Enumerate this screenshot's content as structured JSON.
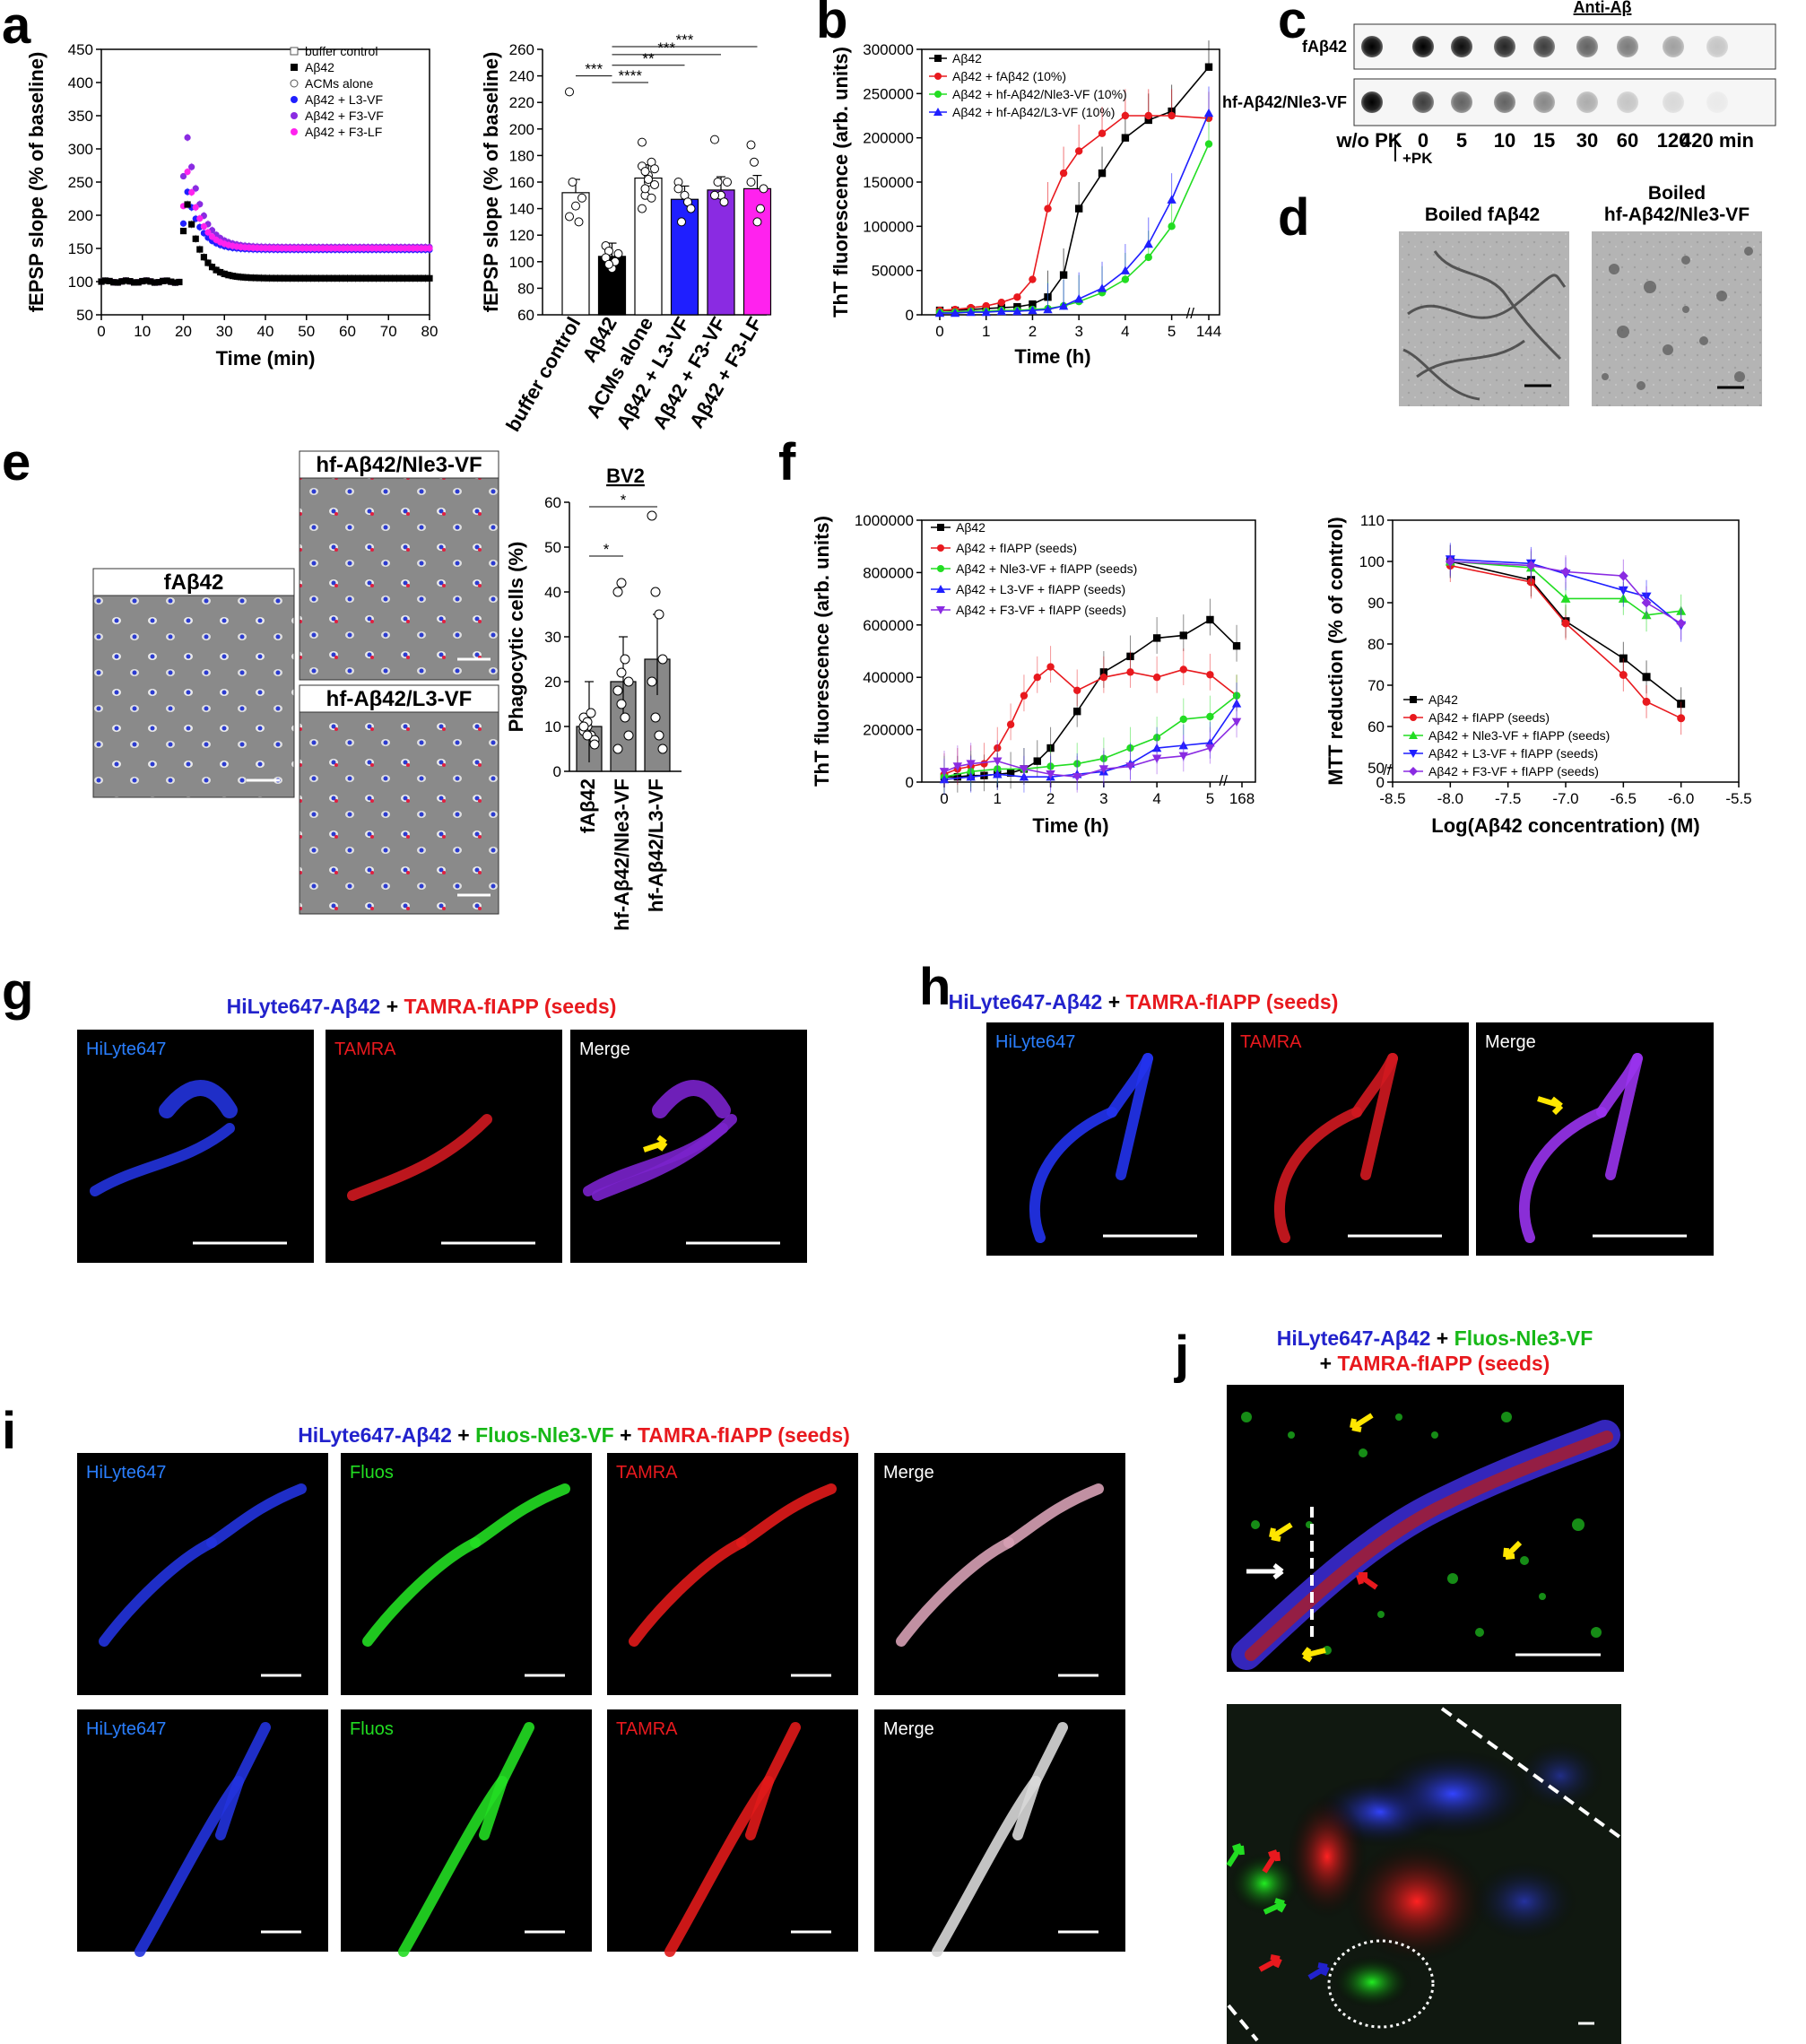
{
  "panels": {
    "a": "a",
    "b": "b",
    "c": "c",
    "d": "d",
    "e": "e",
    "f": "f",
    "g": "g",
    "h": "h",
    "i": "i",
    "j": "j"
  },
  "colors": {
    "black": "#000000",
    "red": "#e8191e",
    "green": "#22dd22",
    "blue": "#1f1fff",
    "violet": "#8a2be2",
    "magenta": "#ff22ee",
    "blue_title": "#2222cc",
    "green_title": "#17b817",
    "red_title": "#e8191e",
    "yellow_arrow": "#ffe600"
  },
  "chart_data": [
    {
      "id": "a-left",
      "type": "scatter",
      "xlabel": "Time (min)",
      "ylabel": "fEPSP slope (% of baseline)",
      "xlim": [
        0,
        80
      ],
      "ylim": [
        50,
        450
      ],
      "xticks": [
        "0",
        "10",
        "20",
        "30",
        "40",
        "50",
        "60",
        "70",
        "80"
      ],
      "yticks": [
        "50",
        "100",
        "150",
        "200",
        "250",
        "300",
        "350",
        "400",
        "450"
      ],
      "legend": [
        "buffer control",
        "Aβ42",
        "ACMs alone",
        "Aβ42 + L3-VF",
        "Aβ42 + F3-VF",
        "Aβ42 + F3-LF"
      ],
      "legend_position": "top-right",
      "series": [
        {
          "name": "buffer control",
          "marker": "open-square",
          "color": "#555555"
        },
        {
          "name": "Aβ42",
          "marker": "filled-square",
          "color": "#000000",
          "baseline": 100,
          "peak": [
            20.5,
            235
          ],
          "plateau": 105
        },
        {
          "name": "ACMs alone",
          "marker": "open-circle",
          "color": "#555555"
        },
        {
          "name": "Aβ42 + L3-VF",
          "marker": "filled-circle",
          "color": "#1f1fff",
          "baseline": 100,
          "peak": [
            20.5,
            250
          ],
          "plateau": 148
        },
        {
          "name": "Aβ42 + F3-VF",
          "marker": "filled-circle",
          "color": "#8a2be2",
          "baseline": 100,
          "peak": [
            20.5,
            345
          ],
          "plateau": 152
        },
        {
          "name": "Aβ42 + F3-LF",
          "marker": "filled-circle",
          "color": "#ff22ee",
          "baseline": 100,
          "peak": [
            20.5,
            285
          ],
          "plateau": 150
        }
      ]
    },
    {
      "id": "a-right",
      "type": "bar",
      "ylabel": "fEPSP slope (% of baseline)",
      "ylim": [
        60,
        260
      ],
      "yticks": [
        "60",
        "80",
        "100",
        "120",
        "140",
        "160",
        "180",
        "200",
        "220",
        "240",
        "260"
      ],
      "categories": [
        "buffer control",
        "Aβ42",
        "ACMs alone",
        "Aβ42 + L3-VF",
        "Aβ42 + F3-VF",
        "Aβ42 + F3-LF"
      ],
      "values": [
        152,
        104,
        163,
        147,
        154,
        155
      ],
      "colors": [
        "#ffffff",
        "#000000",
        "#ffffff",
        "#1f1fff",
        "#8a2be2",
        "#ff22ee"
      ],
      "significance": [
        "***",
        "****",
        "**",
        "***",
        "***"
      ]
    },
    {
      "id": "b",
      "type": "line",
      "xlabel": "Time (h)",
      "ylabel": "ThT fluorescence (arb. units)",
      "ylim": [
        0,
        300000
      ],
      "xticks": [
        "0",
        "1",
        "2",
        "3",
        "4",
        "5",
        "144"
      ],
      "yticks": [
        "0",
        "50000",
        "100000",
        "150000",
        "200000",
        "250000",
        "300000"
      ],
      "legend_position": "top-left",
      "series": [
        {
          "name": "Aβ42",
          "color": "#000000",
          "marker": "square",
          "points": [
            [
              0,
              5000
            ],
            [
              0.33,
              5000
            ],
            [
              0.67,
              6000
            ],
            [
              1,
              7000
            ],
            [
              1.33,
              8000
            ],
            [
              1.67,
              9000
            ],
            [
              2,
              12000
            ],
            [
              2.33,
              20000
            ],
            [
              2.67,
              45000
            ],
            [
              3,
              120000
            ],
            [
              3.5,
              160000
            ],
            [
              4,
              200000
            ],
            [
              4.5,
              220000
            ],
            [
              5,
              230000
            ],
            [
              5.8,
              280000
            ]
          ]
        },
        {
          "name": "Aβ42 + fAβ42 (10%)",
          "color": "#e8191e",
          "marker": "circle",
          "points": [
            [
              0,
              5000
            ],
            [
              0.33,
              6000
            ],
            [
              0.67,
              8000
            ],
            [
              1,
              10000
            ],
            [
              1.33,
              14000
            ],
            [
              1.67,
              20000
            ],
            [
              2,
              40000
            ],
            [
              2.33,
              120000
            ],
            [
              2.67,
              160000
            ],
            [
              3,
              185000
            ],
            [
              3.5,
              205000
            ],
            [
              4,
              225000
            ],
            [
              4.5,
              225000
            ],
            [
              5,
              225000
            ],
            [
              5.8,
              222000
            ]
          ]
        },
        {
          "name": "Aβ42 + hf-Aβ42/Nle3-VF (10%)",
          "color": "#22dd22",
          "marker": "circle",
          "points": [
            [
              0,
              3000
            ],
            [
              0.33,
              3000
            ],
            [
              0.67,
              4000
            ],
            [
              1,
              4000
            ],
            [
              1.33,
              5000
            ],
            [
              1.67,
              5000
            ],
            [
              2,
              6000
            ],
            [
              2.33,
              7000
            ],
            [
              2.67,
              10000
            ],
            [
              3,
              15000
            ],
            [
              3.5,
              25000
            ],
            [
              4,
              40000
            ],
            [
              4.5,
              65000
            ],
            [
              5,
              100000
            ],
            [
              5.8,
              193000
            ]
          ]
        },
        {
          "name": "Aβ42 + hf-Aβ42/L3-VF (10%)",
          "color": "#1f1fff",
          "marker": "triangle",
          "points": [
            [
              0,
              2000
            ],
            [
              0.33,
              2000
            ],
            [
              0.67,
              3000
            ],
            [
              1,
              3000
            ],
            [
              1.33,
              4000
            ],
            [
              1.67,
              4000
            ],
            [
              2,
              5000
            ],
            [
              2.33,
              6000
            ],
            [
              2.67,
              10000
            ],
            [
              3,
              18000
            ],
            [
              3.5,
              30000
            ],
            [
              4,
              50000
            ],
            [
              4.5,
              80000
            ],
            [
              5,
              130000
            ],
            [
              5.8,
              228000
            ]
          ]
        }
      ]
    },
    {
      "id": "e",
      "type": "bar",
      "title": "BV2",
      "ylabel": "Phagocytic cells (%)",
      "ylim": [
        0,
        60
      ],
      "yticks": [
        "0",
        "10",
        "20",
        "30",
        "40",
        "50",
        "60"
      ],
      "categories": [
        "fAβ42",
        "hf-Aβ42/Nle3-VF",
        "hf-Aβ42/L3-VF"
      ],
      "values": [
        10,
        20,
        25
      ],
      "significance": [
        "*",
        "*"
      ]
    },
    {
      "id": "f-left",
      "type": "line",
      "xlabel": "Time (h)",
      "ylabel": "ThT fluorescence (arb. units)",
      "ylim": [
        0,
        1000000
      ],
      "xticks": [
        "0",
        "1",
        "2",
        "3",
        "4",
        "5",
        "168"
      ],
      "yticks": [
        "0",
        "200000",
        "400000",
        "600000",
        "800000",
        "1000000"
      ],
      "legend_position": "top-left",
      "series": [
        {
          "name": "Aβ42",
          "color": "#000000",
          "marker": "square",
          "points": [
            [
              0,
              20000
            ],
            [
              0.25,
              20000
            ],
            [
              0.5,
              25000
            ],
            [
              0.75,
              25000
            ],
            [
              1,
              30000
            ],
            [
              1.25,
              35000
            ],
            [
              1.5,
              50000
            ],
            [
              1.75,
              80000
            ],
            [
              2,
              130000
            ],
            [
              2.5,
              270000
            ],
            [
              3,
              420000
            ],
            [
              3.5,
              480000
            ],
            [
              4,
              550000
            ],
            [
              4.5,
              560000
            ],
            [
              5,
              620000
            ],
            [
              5.5,
              520000
            ]
          ]
        },
        {
          "name": "Aβ42 + fIAPP (seeds)",
          "color": "#e8191e",
          "marker": "circle",
          "points": [
            [
              0,
              30000
            ],
            [
              0.25,
              50000
            ],
            [
              0.5,
              60000
            ],
            [
              0.75,
              70000
            ],
            [
              1,
              130000
            ],
            [
              1.25,
              220000
            ],
            [
              1.5,
              330000
            ],
            [
              1.75,
              400000
            ],
            [
              2,
              440000
            ],
            [
              2.5,
              350000
            ],
            [
              3,
              400000
            ],
            [
              3.5,
              420000
            ],
            [
              4,
              400000
            ],
            [
              4.5,
              430000
            ],
            [
              5,
              410000
            ],
            [
              5.5,
              330000
            ]
          ]
        },
        {
          "name": "Aβ42 + Nle3-VF + fIAPP (seeds)",
          "color": "#22dd22",
          "marker": "circle",
          "points": [
            [
              0,
              20000
            ],
            [
              0.5,
              40000
            ],
            [
              1,
              50000
            ],
            [
              1.5,
              50000
            ],
            [
              2,
              60000
            ],
            [
              2.5,
              70000
            ],
            [
              3,
              90000
            ],
            [
              3.5,
              130000
            ],
            [
              4,
              170000
            ],
            [
              4.5,
              240000
            ],
            [
              5,
              250000
            ],
            [
              5.5,
              330000
            ]
          ]
        },
        {
          "name": "Aβ42 + L3-VF + fIAPP (seeds)",
          "color": "#1f1fff",
          "marker": "triangle",
          "points": [
            [
              0,
              10000
            ],
            [
              0.5,
              20000
            ],
            [
              1,
              30000
            ],
            [
              1.5,
              20000
            ],
            [
              2,
              20000
            ],
            [
              2.5,
              30000
            ],
            [
              3,
              40000
            ],
            [
              3.5,
              70000
            ],
            [
              4,
              130000
            ],
            [
              4.5,
              140000
            ],
            [
              5,
              150000
            ],
            [
              5.5,
              300000
            ]
          ]
        },
        {
          "name": "Aβ42 + F3-VF + fIAPP (seeds)",
          "color": "#8a2be2",
          "marker": "triangle-down",
          "points": [
            [
              0,
              40000
            ],
            [
              0.25,
              60000
            ],
            [
              0.5,
              70000
            ],
            [
              1,
              80000
            ],
            [
              1.5,
              50000
            ],
            [
              2,
              30000
            ],
            [
              2.5,
              20000
            ],
            [
              3,
              50000
            ],
            [
              3.5,
              60000
            ],
            [
              4,
              90000
            ],
            [
              4.5,
              100000
            ],
            [
              5,
              130000
            ],
            [
              5.5,
              230000
            ]
          ]
        }
      ]
    },
    {
      "id": "f-right",
      "type": "line",
      "xlabel": "Log(Aβ42 concentration) (M)",
      "ylabel": "MTT reduction (% of control)",
      "xlim": [
        -8.5,
        -5.5
      ],
      "ylim": [
        0,
        110
      ],
      "xticks": [
        "-8.5",
        "-8.0",
        "-7.5",
        "-7.0",
        "-6.5",
        "-6.0",
        "-5.5"
      ],
      "yticks": [
        "0",
        "50",
        "60",
        "70",
        "80",
        "90",
        "100",
        "110"
      ],
      "legend_position": "bottom-left",
      "series": [
        {
          "name": "Aβ42",
          "color": "#000000",
          "marker": "square",
          "points": [
            [
              -8,
              100
            ],
            [
              -7.3,
              95.5
            ],
            [
              -7,
              85.5
            ],
            [
              -6.5,
              76.5
            ],
            [
              -6.3,
              72
            ],
            [
              -6,
              65.5
            ]
          ]
        },
        {
          "name": "Aβ42 + fIAPP (seeds)",
          "color": "#e8191e",
          "marker": "circle",
          "points": [
            [
              -8,
              99
            ],
            [
              -7.3,
              95
            ],
            [
              -7,
              85
            ],
            [
              -6.5,
              72.5
            ],
            [
              -6.3,
              66
            ],
            [
              -6,
              62
            ]
          ]
        },
        {
          "name": "Aβ42 + Nle3-VF + fIAPP (seeds)",
          "color": "#22dd22",
          "marker": "triangle",
          "points": [
            [
              -8,
              100
            ],
            [
              -7.3,
              98.5
            ],
            [
              -7,
              91
            ],
            [
              -6.5,
              91
            ],
            [
              -6.3,
              87
            ],
            [
              -6,
              88
            ]
          ]
        },
        {
          "name": "Aβ42 + L3-VF + fIAPP (seeds)",
          "color": "#1f1fff",
          "marker": "triangle-down",
          "points": [
            [
              -8,
              100.5
            ],
            [
              -7.3,
              99.5
            ],
            [
              -7,
              97
            ],
            [
              -6.5,
              93
            ],
            [
              -6.3,
              91.5
            ],
            [
              -6,
              84.5
            ]
          ]
        },
        {
          "name": "Aβ42 + F3-VF + fIAPP (seeds)",
          "color": "#8a2be2",
          "marker": "diamond",
          "points": [
            [
              -8,
              100
            ],
            [
              -7.3,
              99
            ],
            [
              -7,
              97.5
            ],
            [
              -6.5,
              96.5
            ],
            [
              -6.3,
              90
            ],
            [
              -6,
              85
            ]
          ]
        }
      ]
    }
  ],
  "c": {
    "title": "Anti-Aβ",
    "rows": [
      {
        "label": "fAβ42",
        "intensity": [
          1.0,
          1.0,
          0.95,
          0.85,
          0.75,
          0.6,
          0.5,
          0.35,
          0.2
        ]
      },
      {
        "label": "hf-Aβ42/Nle3-VF",
        "intensity": [
          1.0,
          0.75,
          0.6,
          0.6,
          0.45,
          0.3,
          0.2,
          0.12,
          0.05
        ]
      }
    ],
    "lanes": [
      "w/o PK",
      "0",
      "5",
      "10",
      "15",
      "30",
      "60",
      "120",
      "420 min"
    ],
    "pk_label": "+PK"
  },
  "d": {
    "left": "Boiled fAβ42",
    "right_line1": "Boiled",
    "right_line2": "hf-Aβ42/Nle3-VF"
  },
  "e": {
    "tiles": [
      "fAβ42",
      "hf-Aβ42/Nle3-VF",
      "hf-Aβ42/L3-VF"
    ]
  },
  "g": {
    "title_parts": [
      "HiLyte647-Aβ42",
      " + ",
      "TAMRA-fIAPP (seeds)"
    ],
    "channels": [
      "HiLyte647",
      "TAMRA",
      "Merge"
    ]
  },
  "h": {
    "title_parts": [
      "HiLyte647-Aβ42",
      " + ",
      "TAMRA-fIAPP (seeds)"
    ],
    "channels": [
      "HiLyte647",
      "TAMRA",
      "Merge"
    ]
  },
  "i": {
    "title_parts": [
      "HiLyte647-Aβ42",
      " + ",
      "Fluos-Nle3-VF",
      " + ",
      "TAMRA-fIAPP (seeds)"
    ],
    "channels": [
      "HiLyte647",
      "Fluos",
      "TAMRA",
      "Merge"
    ]
  },
  "j": {
    "title_line1": [
      "HiLyte647-Aβ42",
      " + ",
      "Fluos-Nle3-VF"
    ],
    "title_line2": [
      "+ ",
      "TAMRA-fIAPP (seeds)"
    ]
  }
}
